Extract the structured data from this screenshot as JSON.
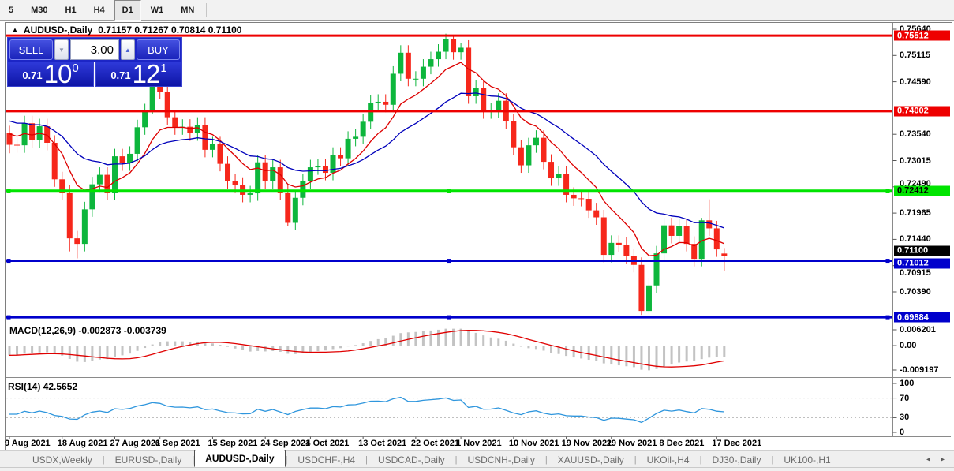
{
  "toolbar": {
    "timeframes": [
      "5",
      "M30",
      "H1",
      "H4",
      "D1",
      "W1",
      "MN"
    ],
    "active_index": 4
  },
  "chart": {
    "collapse_marker": "▲",
    "title_symbol": "AUDUSD-,Daily",
    "title_ohlc": "0.71157 0.71267 0.70814 0.71100"
  },
  "trade_panel": {
    "sell_label": "SELL",
    "buy_label": "BUY",
    "volume": "3.00",
    "spin_down": "▼",
    "spin_up": "▲",
    "sell_price": {
      "small": "0.71",
      "big": "10",
      "sup": "0"
    },
    "buy_price": {
      "small": "0.71",
      "big": "12",
      "sup": "1"
    }
  },
  "colors": {
    "bull": "#0db63c",
    "bear": "#f6271b",
    "ma_fast": "#dd0000",
    "ma_slow": "#0000bb",
    "hline_red": "#ee0000",
    "hline_green": "#00e400",
    "hline_blue": "#0000cc",
    "macd_hist": "#c3c3c3",
    "macd_signal": "#e00000",
    "rsi_line": "#2f96dd"
  },
  "chart_data": {
    "type": "candlestick",
    "symbol": "AUDUSD-",
    "timeframe": "Daily",
    "ohlc_display": {
      "open": "0.71157",
      "high": "0.71267",
      "low": "0.70814",
      "close": "0.71100"
    },
    "candles": [
      [
        0.7356,
        0.7371,
        0.7316,
        0.7333
      ],
      [
        0.7333,
        0.7348,
        0.7317,
        0.7332
      ],
      [
        0.7332,
        0.7391,
        0.7317,
        0.7376
      ],
      [
        0.7376,
        0.7391,
        0.7327,
        0.7342
      ],
      [
        0.7342,
        0.7385,
        0.7327,
        0.737
      ],
      [
        0.737,
        0.7385,
        0.7322,
        0.7337
      ],
      [
        0.7337,
        0.7352,
        0.7249,
        0.7264
      ],
      [
        0.7264,
        0.7279,
        0.7222,
        0.7237
      ],
      [
        0.7237,
        0.7252,
        0.712,
        0.7146
      ],
      [
        0.7146,
        0.7161,
        0.7106,
        0.7135
      ],
      [
        0.7135,
        0.7219,
        0.712,
        0.7204
      ],
      [
        0.7204,
        0.7269,
        0.7189,
        0.7254
      ],
      [
        0.7254,
        0.7288,
        0.7239,
        0.7273
      ],
      [
        0.7273,
        0.7288,
        0.7222,
        0.7237
      ],
      [
        0.7237,
        0.7325,
        0.7222,
        0.731
      ],
      [
        0.731,
        0.7325,
        0.7281,
        0.7296
      ],
      [
        0.7296,
        0.733,
        0.7281,
        0.7315
      ],
      [
        0.7315,
        0.7383,
        0.73,
        0.7368
      ],
      [
        0.7368,
        0.7415,
        0.7353,
        0.74
      ],
      [
        0.74,
        0.7478,
        0.7395,
        0.7453
      ],
      [
        0.7453,
        0.7468,
        0.7424,
        0.7439
      ],
      [
        0.7439,
        0.7454,
        0.7373,
        0.7388
      ],
      [
        0.7388,
        0.7403,
        0.7353,
        0.7368
      ],
      [
        0.7368,
        0.7384,
        0.7353,
        0.7369
      ],
      [
        0.7369,
        0.7384,
        0.7341,
        0.7356
      ],
      [
        0.7356,
        0.7388,
        0.7341,
        0.7373
      ],
      [
        0.7373,
        0.7388,
        0.7308,
        0.7323
      ],
      [
        0.7323,
        0.7349,
        0.7308,
        0.7334
      ],
      [
        0.7334,
        0.7349,
        0.728,
        0.7295
      ],
      [
        0.7295,
        0.731,
        0.7245,
        0.726
      ],
      [
        0.726,
        0.7275,
        0.7238,
        0.7253
      ],
      [
        0.7253,
        0.7268,
        0.7218,
        0.7233
      ],
      [
        0.7233,
        0.7251,
        0.7218,
        0.7236
      ],
      [
        0.7236,
        0.7313,
        0.7221,
        0.7298
      ],
      [
        0.7298,
        0.7313,
        0.7245,
        0.726
      ],
      [
        0.726,
        0.7303,
        0.7245,
        0.7288
      ],
      [
        0.7288,
        0.7303,
        0.7222,
        0.7237
      ],
      [
        0.7237,
        0.7252,
        0.717,
        0.7177
      ],
      [
        0.7177,
        0.7242,
        0.7162,
        0.7227
      ],
      [
        0.7227,
        0.7275,
        0.7212,
        0.726
      ],
      [
        0.726,
        0.7303,
        0.7245,
        0.7288
      ],
      [
        0.7288,
        0.7305,
        0.7273,
        0.729
      ],
      [
        0.729,
        0.7305,
        0.7262,
        0.7277
      ],
      [
        0.7277,
        0.7328,
        0.7262,
        0.7313
      ],
      [
        0.7313,
        0.7328,
        0.7291,
        0.7306
      ],
      [
        0.7306,
        0.736,
        0.7291,
        0.7345
      ],
      [
        0.7345,
        0.7364,
        0.733,
        0.7349
      ],
      [
        0.7349,
        0.7394,
        0.7334,
        0.7379
      ],
      [
        0.7379,
        0.7432,
        0.7364,
        0.7417
      ],
      [
        0.7417,
        0.7434,
        0.7402,
        0.7419
      ],
      [
        0.7419,
        0.7434,
        0.7398,
        0.7413
      ],
      [
        0.7413,
        0.749,
        0.7398,
        0.7475
      ],
      [
        0.7475,
        0.7532,
        0.746,
        0.7517
      ],
      [
        0.7517,
        0.7532,
        0.745,
        0.7465
      ],
      [
        0.7465,
        0.748,
        0.745,
        0.7465
      ],
      [
        0.7465,
        0.7504,
        0.745,
        0.7489
      ],
      [
        0.7489,
        0.7519,
        0.7474,
        0.7504
      ],
      [
        0.7504,
        0.7534,
        0.7489,
        0.7519
      ],
      [
        0.7519,
        0.7555,
        0.7504,
        0.7544
      ],
      [
        0.7544,
        0.7551,
        0.7503,
        0.7518
      ],
      [
        0.7518,
        0.7537,
        0.7503,
        0.7527
      ],
      [
        0.7527,
        0.7542,
        0.7415,
        0.743
      ],
      [
        0.743,
        0.7462,
        0.7415,
        0.7447
      ],
      [
        0.7447,
        0.7462,
        0.7385,
        0.74
      ],
      [
        0.74,
        0.7417,
        0.7385,
        0.7402
      ],
      [
        0.7402,
        0.7436,
        0.7387,
        0.7421
      ],
      [
        0.7421,
        0.7436,
        0.7365,
        0.738
      ],
      [
        0.738,
        0.7395,
        0.7313,
        0.7328
      ],
      [
        0.7328,
        0.7343,
        0.7277,
        0.7292
      ],
      [
        0.7292,
        0.7347,
        0.7277,
        0.7332
      ],
      [
        0.7332,
        0.7362,
        0.7317,
        0.7347
      ],
      [
        0.7347,
        0.7362,
        0.7284,
        0.7299
      ],
      [
        0.7299,
        0.7314,
        0.7251,
        0.7266
      ],
      [
        0.7266,
        0.729,
        0.7251,
        0.7275
      ],
      [
        0.7275,
        0.729,
        0.7218,
        0.7233
      ],
      [
        0.7233,
        0.7248,
        0.7211,
        0.7226
      ],
      [
        0.7226,
        0.7241,
        0.721,
        0.7225
      ],
      [
        0.7225,
        0.724,
        0.7187,
        0.7202
      ],
      [
        0.7202,
        0.7217,
        0.7173,
        0.7188
      ],
      [
        0.7188,
        0.7203,
        0.7098,
        0.7113
      ],
      [
        0.7113,
        0.7152,
        0.7098,
        0.7137
      ],
      [
        0.7137,
        0.7152,
        0.7118,
        0.7133
      ],
      [
        0.7133,
        0.7148,
        0.7095,
        0.711
      ],
      [
        0.711,
        0.7125,
        0.7078,
        0.7093
      ],
      [
        0.7093,
        0.7108,
        0.6993,
        0.7001
      ],
      [
        0.7001,
        0.7067,
        0.6995,
        0.7052
      ],
      [
        0.7052,
        0.7131,
        0.7037,
        0.7116
      ],
      [
        0.7116,
        0.7187,
        0.7101,
        0.7172
      ],
      [
        0.7172,
        0.7187,
        0.7136,
        0.7151
      ],
      [
        0.7151,
        0.7185,
        0.7136,
        0.717
      ],
      [
        0.717,
        0.7185,
        0.712,
        0.7135
      ],
      [
        0.7135,
        0.715,
        0.709,
        0.7105
      ],
      [
        0.7105,
        0.7187,
        0.709,
        0.7182
      ],
      [
        0.7182,
        0.7224,
        0.7151,
        0.7166
      ],
      [
        0.7166,
        0.7181,
        0.7109,
        0.7124
      ],
      [
        0.71157,
        0.71267,
        0.70814,
        0.711
      ]
    ],
    "x_ticks": [
      {
        "i": 0,
        "label": "9 Aug 2021"
      },
      {
        "i": 7,
        "label": "18 Aug 2021"
      },
      {
        "i": 14,
        "label": "27 Aug 2021"
      },
      {
        "i": 20,
        "label": "6 Sep 2021"
      },
      {
        "i": 27,
        "label": "15 Sep 2021"
      },
      {
        "i": 34,
        "label": "24 Sep 2021"
      },
      {
        "i": 40,
        "label": "4 Oct 2021"
      },
      {
        "i": 47,
        "label": "13 Oct 2021"
      },
      {
        "i": 54,
        "label": "22 Oct 2021"
      },
      {
        "i": 60,
        "label": "1 Nov 2021"
      },
      {
        "i": 67,
        "label": "10 Nov 2021"
      },
      {
        "i": 74,
        "label": "19 Nov 2021"
      },
      {
        "i": 80,
        "label": "29 Nov 2021"
      },
      {
        "i": 87,
        "label": "8 Dec 2021"
      },
      {
        "i": 94,
        "label": "17 Dec 2021"
      }
    ],
    "price_axis_ticks": [
      {
        "label": "0.75640",
        "price": 0.7564
      },
      {
        "label": "0.75115",
        "price": 0.75115
      },
      {
        "label": "0.74590",
        "price": 0.7459
      },
      {
        "label": "0.73540",
        "price": 0.7354
      },
      {
        "label": "0.73015",
        "price": 0.73015
      },
      {
        "label": "0.72490",
        "price": 0.7249,
        "dy": -4
      },
      {
        "label": "0.71965",
        "price": 0.71965
      },
      {
        "label": "0.71440",
        "price": 0.7144
      },
      {
        "label": "0.70915",
        "price": 0.70915,
        "dy": 9
      },
      {
        "label": "0.70390",
        "price": 0.7039
      }
    ],
    "hlines": [
      {
        "price": 0.75512,
        "label": "0.75512",
        "color": "#ee0000",
        "label_fg": "#ffffff",
        "handles": false
      },
      {
        "price": 0.74002,
        "label": "0.74002",
        "color": "#ee0000",
        "label_fg": "#ffffff",
        "handles": false
      },
      {
        "price": 0.72412,
        "label": "0.72412",
        "color": "#00e400",
        "label_fg": "#000000",
        "handles": true
      },
      {
        "price": 0.71012,
        "label": "0.71012",
        "color": "#0000cc",
        "label_fg": "#ffffff",
        "handles": true,
        "label_dy": 3
      },
      {
        "price": 0.69884,
        "label": "0.69884",
        "color": "#0000cc",
        "label_fg": "#ffffff",
        "handles": true
      }
    ],
    "price_marker": {
      "price": 0.711,
      "label": "0.71100",
      "bg": "#000000",
      "fg": "#ffffff",
      "label_dy": -7
    },
    "moving_averages": [
      {
        "name": "ma-fast",
        "period": 9,
        "color_key": "ma_fast"
      },
      {
        "name": "ma-slow",
        "period": 22,
        "color_key": "ma_slow"
      }
    ],
    "indicators": [
      {
        "name": "MACD",
        "label": "MACD(12,26,9)",
        "values_text": "-0.002873 -0.003739",
        "axis_labels": [
          "0.006201",
          "0.00",
          "-0.009197"
        ],
        "fast": 12,
        "slow": 26,
        "signal": 9
      },
      {
        "name": "RSI",
        "label": "RSI(14)",
        "values_text": "42.5652",
        "axis_labels": [
          "100",
          "70",
          "30",
          "0"
        ],
        "levels": [
          70,
          30
        ],
        "period": 14
      }
    ]
  },
  "tabs": {
    "separator": "|",
    "items": [
      "USDX,Weekly",
      "EURUSD-,Daily",
      "AUDUSD-,Daily",
      "USDCHF-,H4",
      "USDCAD-,Daily",
      "USDCNH-,Daily",
      "XAUUSD-,Daily",
      "UKOil-,H4",
      "DJ30-,Daily",
      "UK100-,H1"
    ],
    "active_index": 2,
    "scroll_left": "◂",
    "scroll_right": "▸"
  }
}
